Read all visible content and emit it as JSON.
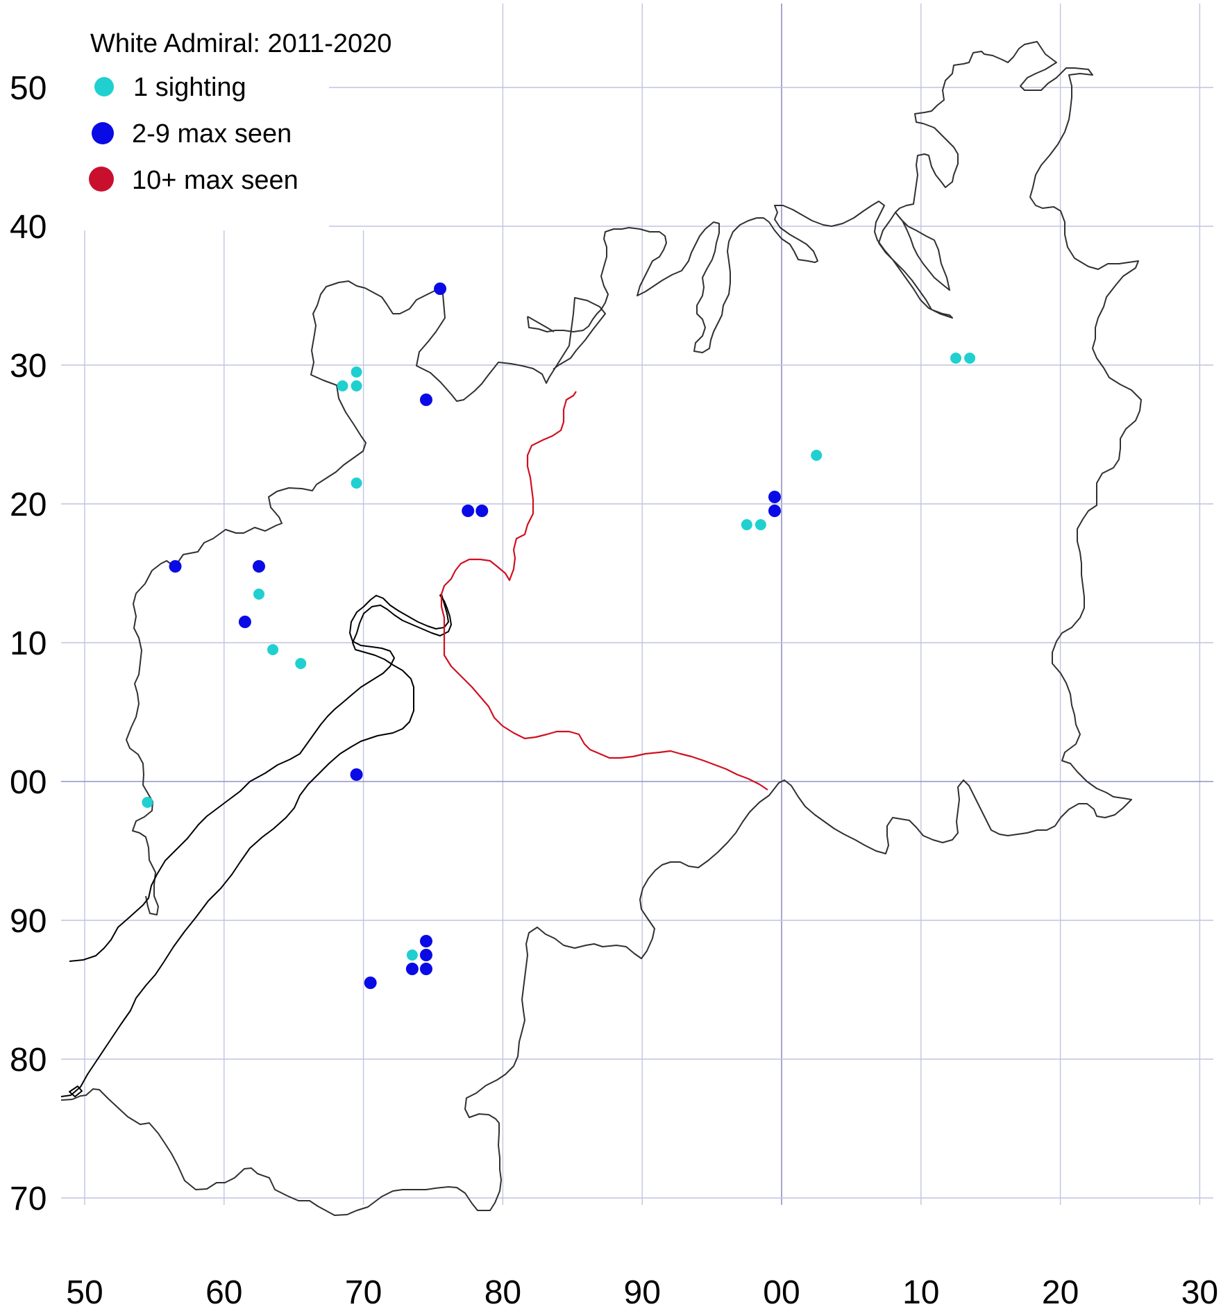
{
  "legend": {
    "title": "White Admiral:  2011-2020",
    "items": [
      {
        "label": "1 sighting",
        "color": "#20d0d0"
      },
      {
        "label": "2-9 max seen",
        "color": "#0a0ae6"
      },
      {
        "label": "10+ max seen",
        "color": "#c8102e"
      }
    ]
  },
  "axes": {
    "x_ticks": [
      "50",
      "60",
      "70",
      "80",
      "90",
      "00",
      "10",
      "20",
      "30"
    ],
    "y_ticks": [
      "50",
      "40",
      "30",
      "20",
      "10",
      "00",
      "90",
      "80",
      "70"
    ]
  },
  "chart_data": {
    "type": "scatter",
    "title": "White Admiral:  2011-2020",
    "x_range": [
      50,
      130
    ],
    "y_range": [
      70,
      150
    ],
    "series": [
      {
        "name": "1 sighting",
        "color": "#20d0d0",
        "points": [
          [
            69.5,
            129.5
          ],
          [
            68.5,
            128.5
          ],
          [
            69.5,
            128.5
          ],
          [
            69.5,
            121.5
          ],
          [
            62.5,
            113.5
          ],
          [
            63.5,
            109.5
          ],
          [
            65.5,
            108.5
          ],
          [
            54.5,
            98.5
          ],
          [
            73.5,
            87.5
          ],
          [
            97.5,
            118.5
          ],
          [
            98.5,
            118.5
          ],
          [
            102.5,
            123.5
          ],
          [
            112.5,
            130.5
          ],
          [
            113.5,
            130.5
          ]
        ]
      },
      {
        "name": "2-9 max seen",
        "color": "#0a0ae6",
        "points": [
          [
            75.5,
            135.5
          ],
          [
            74.5,
            127.5
          ],
          [
            77.5,
            119.5
          ],
          [
            78.5,
            119.5
          ],
          [
            56.5,
            115.5
          ],
          [
            62.5,
            115.5
          ],
          [
            61.5,
            111.5
          ],
          [
            69.5,
            100.5
          ],
          [
            74.5,
            88.5
          ],
          [
            74.5,
            87.5
          ],
          [
            73.5,
            86.5
          ],
          [
            74.5,
            86.5
          ],
          [
            70.5,
            85.5
          ],
          [
            99.5,
            120.5
          ],
          [
            99.5,
            119.5
          ]
        ]
      },
      {
        "name": "10+ max seen",
        "color": "#c8102e",
        "points": []
      }
    ]
  }
}
